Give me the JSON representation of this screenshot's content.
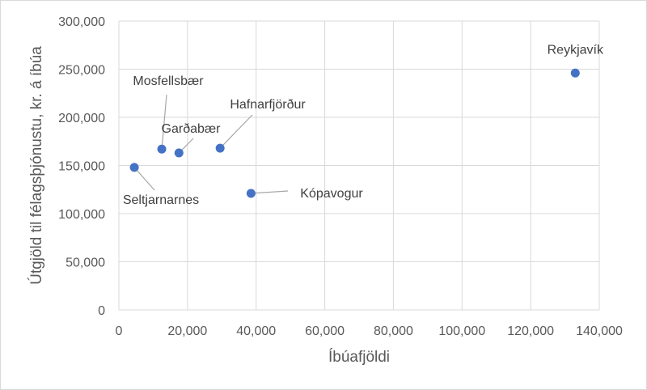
{
  "chart_data": {
    "type": "scatter",
    "title": "",
    "xlabel": "Íbúafjöldi",
    "ylabel": "Útgjöld til félagsþjónustu, kr. á íbúa",
    "xlim": [
      0,
      140000
    ],
    "ylim": [
      0,
      300000
    ],
    "x_ticks": [
      0,
      20000,
      40000,
      60000,
      80000,
      100000,
      120000,
      140000
    ],
    "x_tick_labels": [
      "0",
      "20,000",
      "40,000",
      "60,000",
      "80,000",
      "100,000",
      "120,000",
      "140,000"
    ],
    "y_ticks": [
      0,
      50000,
      100000,
      150000,
      200000,
      250000,
      300000
    ],
    "y_tick_labels": [
      "0",
      "50,000",
      "100,000",
      "150,000",
      "200,000",
      "250,000",
      "300,000"
    ],
    "grid": true,
    "legend": "none",
    "marker_color": "#4472c4",
    "points": [
      {
        "label": "Reykjavík",
        "x": 133000,
        "y": 246000
      },
      {
        "label": "Mosfellsbær",
        "x": 12500,
        "y": 167000
      },
      {
        "label": "Garðabær",
        "x": 17500,
        "y": 163000
      },
      {
        "label": "Hafnarfjörður",
        "x": 29500,
        "y": 168000
      },
      {
        "label": "Seltjarnarnes",
        "x": 4500,
        "y": 148000
      },
      {
        "label": "Kópavogur",
        "x": 38500,
        "y": 121000
      }
    ]
  }
}
